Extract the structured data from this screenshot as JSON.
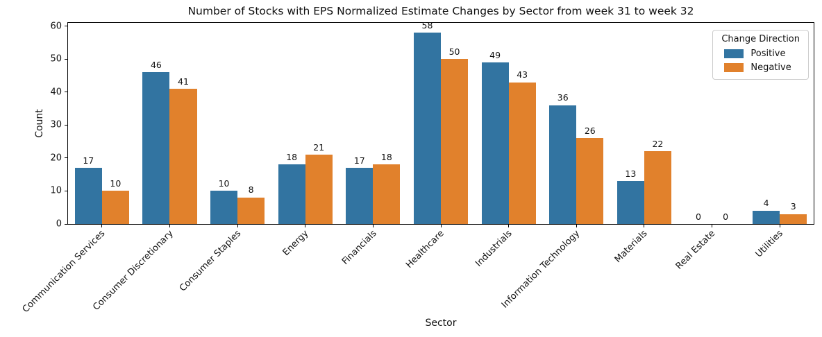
{
  "chart_data": {
    "type": "bar",
    "title": "Number of Stocks with EPS Normalized Estimate Changes by Sector from week 31 to week 32",
    "xlabel": "Sector",
    "ylabel": "Count",
    "legend_title": "Change Direction",
    "legend_position": "upper right",
    "grid": false,
    "bar_value_labels": true,
    "categories": [
      "Communication Services",
      "Consumer Discretionary",
      "Consumer Staples",
      "Energy",
      "Financials",
      "Healthcare",
      "Industrials",
      "Information Technology",
      "Materials",
      "Real Estate",
      "Utilities"
    ],
    "series": [
      {
        "name": "Positive",
        "color": "#3274a1",
        "values": [
          17,
          46,
          10,
          18,
          17,
          58,
          49,
          36,
          13,
          0,
          4
        ]
      },
      {
        "name": "Negative",
        "color": "#e1812c",
        "values": [
          10,
          41,
          8,
          21,
          18,
          50,
          43,
          26,
          22,
          0,
          3
        ]
      }
    ],
    "yticks": [
      0,
      10,
      20,
      30,
      40,
      50,
      60
    ],
    "ylim": [
      0,
      61
    ]
  }
}
